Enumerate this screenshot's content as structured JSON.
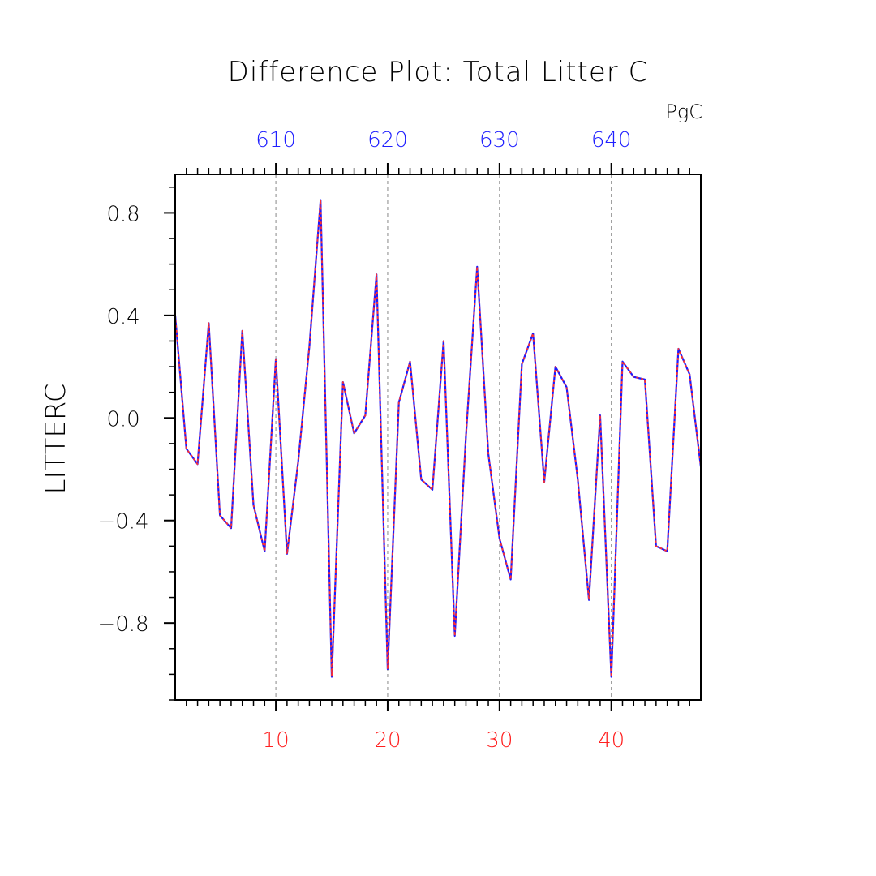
{
  "chart_data": {
    "type": "line",
    "title": "Difference Plot: Total Litter C",
    "units": "PgC",
    "ylabel": "LITTERC",
    "xlabel": "",
    "xlim": [
      1,
      48
    ],
    "ylim": [
      -1.1,
      0.95
    ],
    "grid": "vertical dashed at major x ticks",
    "bottom_axis": {
      "color": "#ff2020",
      "ticks": [
        10,
        20,
        30,
        40
      ],
      "labels": [
        "10",
        "20",
        "30",
        "40"
      ]
    },
    "top_axis": {
      "color": "#2020ff",
      "ticks": [
        10,
        20,
        30,
        40
      ],
      "labels": [
        "610",
        "620",
        "630",
        "640"
      ]
    },
    "y_ticks": [
      0.8,
      0.4,
      0.0,
      -0.4,
      -0.8
    ],
    "y_tick_labels": [
      "0.8",
      "0.4",
      "0.0",
      "−0.4",
      "−0.8"
    ],
    "series": [
      {
        "color": "#1a1aff",
        "overlay_color": "#ff3030",
        "x": [
          1,
          2,
          3,
          4,
          5,
          6,
          7,
          8,
          9,
          10,
          11,
          12,
          13,
          14,
          15,
          16,
          17,
          18,
          19,
          20,
          21,
          22,
          23,
          24,
          25,
          26,
          27,
          28,
          29,
          30,
          31,
          32,
          33,
          34,
          35,
          36,
          37,
          38,
          39,
          40,
          41,
          42,
          43,
          44,
          45,
          46,
          47,
          48
        ],
        "values": [
          0.4,
          -0.12,
          -0.18,
          0.37,
          -0.38,
          -0.43,
          0.34,
          -0.34,
          -0.52,
          0.23,
          -0.53,
          -0.17,
          0.28,
          0.85,
          -1.01,
          0.14,
          -0.06,
          0.01,
          0.56,
          -0.98,
          0.06,
          0.22,
          -0.24,
          -0.28,
          0.3,
          -0.85,
          -0.07,
          0.59,
          -0.14,
          -0.47,
          -0.63,
          0.21,
          0.33,
          -0.25,
          0.2,
          0.12,
          -0.24,
          -0.71,
          0.01,
          -1.01,
          0.22,
          0.16,
          0.15,
          -0.5,
          -0.52,
          0.27,
          0.17,
          -0.19
        ]
      }
    ]
  }
}
